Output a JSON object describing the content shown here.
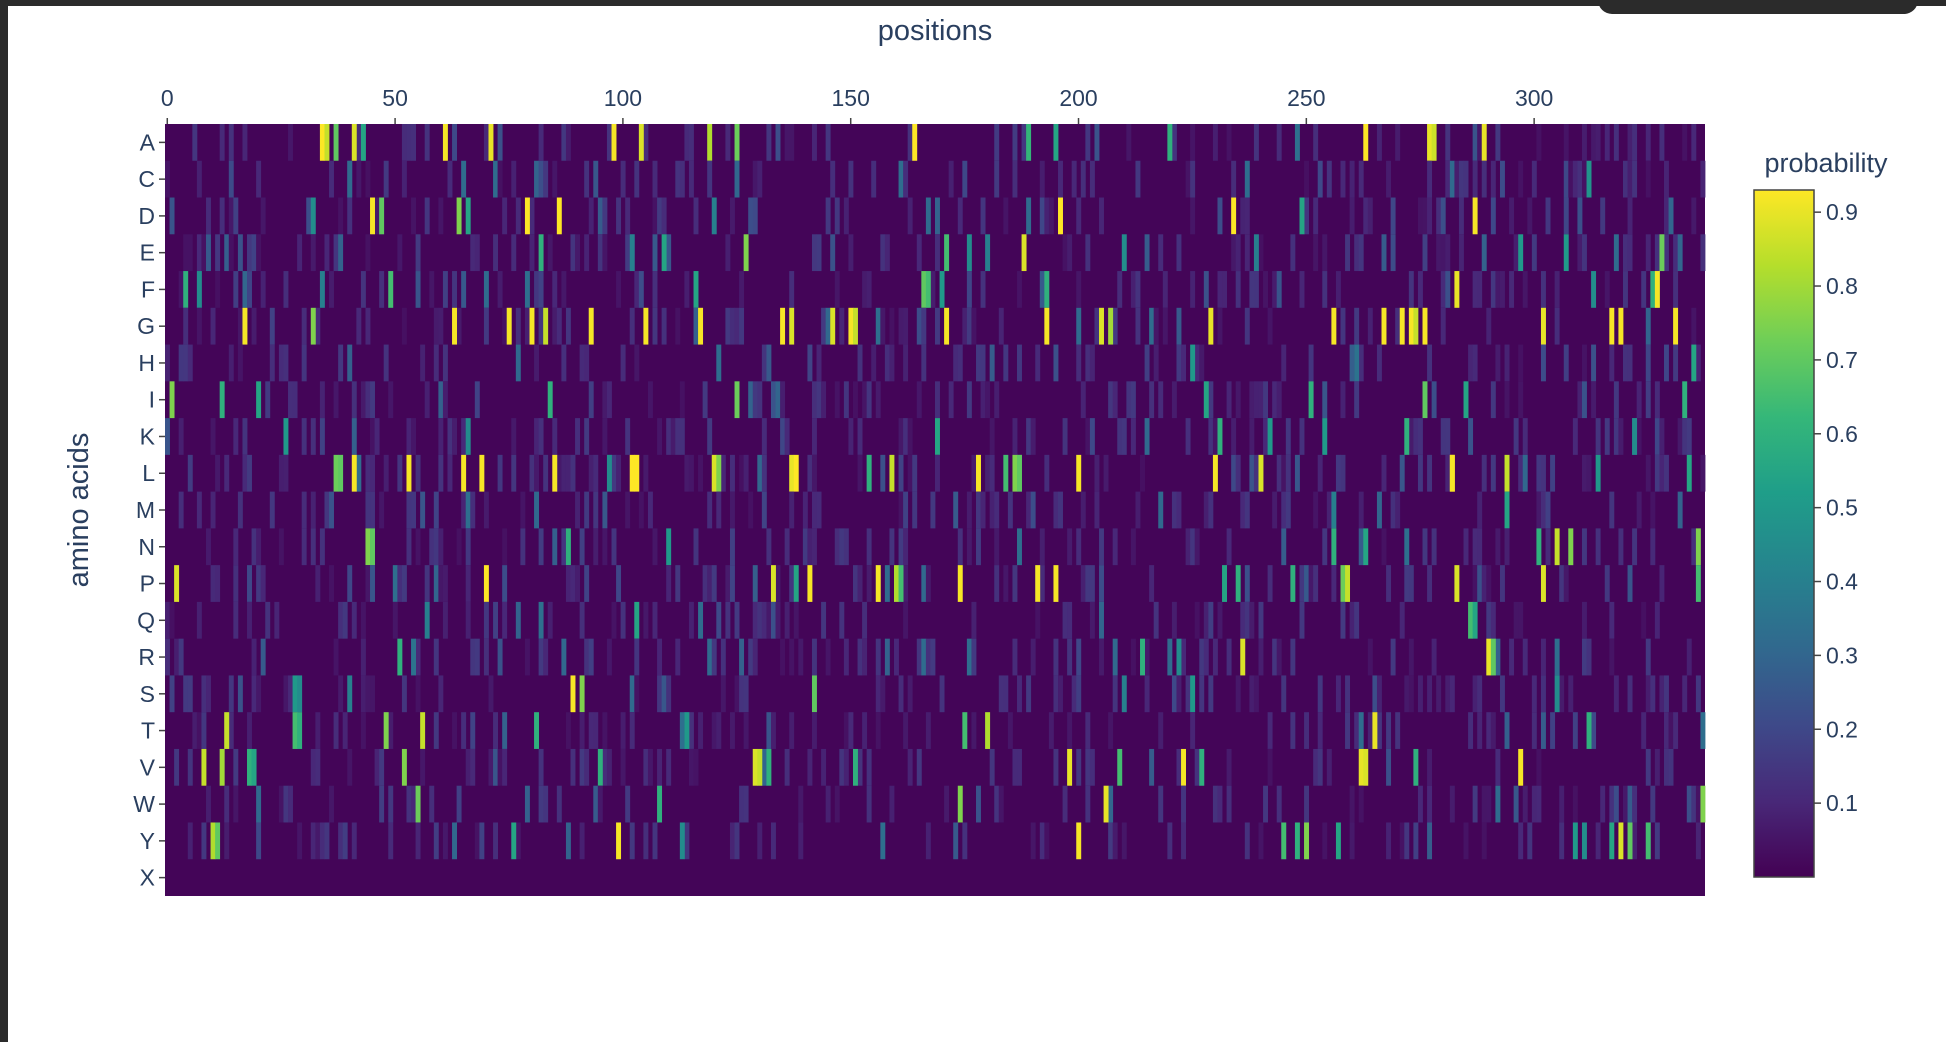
{
  "chart_data": {
    "type": "heatmap",
    "xlabel": "positions",
    "ylabel": "amino acids",
    "x_ticks": [
      0,
      50,
      100,
      150,
      200,
      250,
      300
    ],
    "x_range": [
      -0.5,
      337.5
    ],
    "num_positions": 338,
    "rows": [
      "A",
      "C",
      "D",
      "E",
      "F",
      "G",
      "H",
      "I",
      "K",
      "L",
      "M",
      "N",
      "P",
      "Q",
      "R",
      "S",
      "T",
      "V",
      "W",
      "Y",
      "X"
    ],
    "colorbar": {
      "title": "probability",
      "ticks": [
        0.1,
        0.2,
        0.3,
        0.4,
        0.5,
        0.6,
        0.7,
        0.8,
        0.9
      ],
      "range": [
        0.0,
        0.93
      ],
      "colorscale": "Viridis"
    },
    "peaks": {
      "A": [
        [
          34,
          0.93
        ],
        [
          35,
          0.85
        ],
        [
          37,
          0.7
        ],
        [
          41,
          0.88
        ],
        [
          43,
          0.55
        ],
        [
          61,
          0.92
        ],
        [
          71,
          0.9
        ],
        [
          98,
          0.92
        ],
        [
          104,
          0.88
        ],
        [
          119,
          0.82
        ],
        [
          125,
          0.72
        ],
        [
          164,
          0.93
        ],
        [
          189,
          0.62
        ],
        [
          195,
          0.55
        ],
        [
          220,
          0.6
        ],
        [
          263,
          0.93
        ],
        [
          277,
          0.9
        ],
        [
          278,
          0.86
        ],
        [
          289,
          0.9
        ]
      ],
      "C": [
        [
          40,
          0.32
        ],
        [
          94,
          0.25
        ],
        [
          175,
          0.2
        ],
        [
          312,
          0.48
        ]
      ],
      "D": [
        [
          45,
          0.92
        ],
        [
          47,
          0.7
        ],
        [
          64,
          0.75
        ],
        [
          66,
          0.55
        ],
        [
          79,
          0.93
        ],
        [
          86,
          0.93
        ],
        [
          196,
          0.93
        ],
        [
          234,
          0.93
        ],
        [
          249,
          0.55
        ],
        [
          287,
          0.92
        ],
        [
          32,
          0.45
        ],
        [
          120,
          0.4
        ]
      ],
      "E": [
        [
          82,
          0.6
        ],
        [
          102,
          0.4
        ],
        [
          109,
          0.55
        ],
        [
          127,
          0.75
        ],
        [
          171,
          0.65
        ],
        [
          176,
          0.45
        ],
        [
          180,
          0.4
        ],
        [
          188,
          0.88
        ],
        [
          210,
          0.45
        ],
        [
          239,
          0.4
        ],
        [
          297,
          0.5
        ],
        [
          307,
          0.5
        ],
        [
          328,
          0.72
        ]
      ],
      "F": [
        [
          4,
          0.6
        ],
        [
          7,
          0.45
        ],
        [
          34,
          0.4
        ],
        [
          49,
          0.65
        ],
        [
          116,
          0.55
        ],
        [
          166,
          0.7
        ],
        [
          167,
          0.65
        ],
        [
          170,
          0.5
        ],
        [
          193,
          0.6
        ],
        [
          283,
          0.9
        ],
        [
          313,
          0.45
        ],
        [
          326,
          0.6
        ],
        [
          327,
          0.92
        ]
      ],
      "G": [
        [
          17,
          0.92
        ],
        [
          32,
          0.75
        ],
        [
          63,
          0.92
        ],
        [
          75,
          0.92
        ],
        [
          80,
          0.92
        ],
        [
          83,
          0.85
        ],
        [
          93,
          0.92
        ],
        [
          105,
          0.92
        ],
        [
          117,
          0.92
        ],
        [
          135,
          0.92
        ],
        [
          137,
          0.88
        ],
        [
          146,
          0.88
        ],
        [
          150,
          0.92
        ],
        [
          151,
          0.85
        ],
        [
          171,
          0.92
        ],
        [
          193,
          0.92
        ],
        [
          205,
          0.88
        ],
        [
          207,
          0.8
        ],
        [
          229,
          0.9
        ],
        [
          256,
          0.92
        ],
        [
          267,
          0.92
        ],
        [
          271,
          0.92
        ],
        [
          273,
          0.92
        ],
        [
          274,
          0.85
        ],
        [
          276,
          0.92
        ],
        [
          302,
          0.9
        ],
        [
          317,
          0.92
        ],
        [
          319,
          0.92
        ],
        [
          331,
          0.92
        ]
      ],
      "H": [
        [
          225,
          0.5
        ],
        [
          261,
          0.35
        ],
        [
          335,
          0.55
        ]
      ],
      "I": [
        [
          1,
          0.75
        ],
        [
          12,
          0.6
        ],
        [
          20,
          0.55
        ],
        [
          84,
          0.6
        ],
        [
          125,
          0.72
        ],
        [
          228,
          0.55
        ],
        [
          251,
          0.6
        ],
        [
          276,
          0.7
        ],
        [
          285,
          0.55
        ],
        [
          333,
          0.6
        ]
      ],
      "K": [
        [
          26,
          0.5
        ],
        [
          66,
          0.45
        ],
        [
          169,
          0.55
        ],
        [
          231,
          0.6
        ],
        [
          242,
          0.5
        ],
        [
          254,
          0.5
        ],
        [
          272,
          0.6
        ],
        [
          322,
          0.45
        ]
      ],
      "L": [
        [
          37,
          0.72
        ],
        [
          38,
          0.7
        ],
        [
          41,
          0.92
        ],
        [
          53,
          0.92
        ],
        [
          65,
          0.92
        ],
        [
          69,
          0.92
        ],
        [
          85,
          0.92
        ],
        [
          97,
          0.45
        ],
        [
          102,
          0.93
        ],
        [
          103,
          0.93
        ],
        [
          120,
          0.88
        ],
        [
          121,
          0.75
        ],
        [
          137,
          0.9
        ],
        [
          138,
          0.93
        ],
        [
          154,
          0.6
        ],
        [
          159,
          0.85
        ],
        [
          178,
          0.92
        ],
        [
          184,
          0.65
        ],
        [
          186,
          0.75
        ],
        [
          187,
          0.7
        ],
        [
          200,
          0.92
        ],
        [
          230,
          0.92
        ],
        [
          240,
          0.88
        ],
        [
          282,
          0.92
        ],
        [
          282,
          0.92
        ],
        [
          294,
          0.85
        ],
        [
          314,
          0.5
        ],
        [
          334,
          0.55
        ]
      ],
      "M": [
        [
          256,
          0.4
        ],
        [
          294,
          0.55
        ]
      ],
      "N": [
        [
          44,
          0.75
        ],
        [
          45,
          0.7
        ],
        [
          88,
          0.6
        ],
        [
          110,
          0.5
        ],
        [
          256,
          0.6
        ],
        [
          263,
          0.55
        ],
        [
          301,
          0.6
        ],
        [
          305,
          0.85
        ],
        [
          308,
          0.75
        ],
        [
          336,
          0.75
        ]
      ],
      "P": [
        [
          2,
          0.88
        ],
        [
          70,
          0.93
        ],
        [
          133,
          0.88
        ],
        [
          138,
          0.55
        ],
        [
          141,
          0.92
        ],
        [
          156,
          0.92
        ],
        [
          160,
          0.82
        ],
        [
          161,
          0.65
        ],
        [
          174,
          0.92
        ],
        [
          191,
          0.92
        ],
        [
          195,
          0.92
        ],
        [
          232,
          0.55
        ],
        [
          235,
          0.6
        ],
        [
          247,
          0.6
        ],
        [
          258,
          0.72
        ],
        [
          259,
          0.85
        ],
        [
          283,
          0.88
        ],
        [
          302,
          0.88
        ],
        [
          336,
          0.65
        ]
      ],
      "Q": [
        [
          103,
          0.55
        ],
        [
          286,
          0.65
        ],
        [
          287,
          0.55
        ],
        [
          57,
          0.4
        ]
      ],
      "R": [
        [
          51,
          0.6
        ],
        [
          214,
          0.6
        ],
        [
          222,
          0.45
        ],
        [
          236,
          0.88
        ],
        [
          290,
          0.9
        ],
        [
          291,
          0.7
        ],
        [
          54,
          0.35
        ]
      ],
      "S": [
        [
          28,
          0.5
        ],
        [
          29,
          0.45
        ],
        [
          40,
          0.4
        ],
        [
          89,
          0.92
        ],
        [
          91,
          0.75
        ],
        [
          142,
          0.7
        ],
        [
          210,
          0.4
        ],
        [
          225,
          0.5
        ],
        [
          305,
          0.45
        ]
      ],
      "T": [
        [
          13,
          0.85
        ],
        [
          28,
          0.65
        ],
        [
          48,
          0.75
        ],
        [
          56,
          0.85
        ],
        [
          81,
          0.6
        ],
        [
          114,
          0.5
        ],
        [
          175,
          0.65
        ],
        [
          180,
          0.82
        ],
        [
          265,
          0.9
        ],
        [
          312,
          0.6
        ],
        [
          29,
          0.6
        ]
      ],
      "V": [
        [
          8,
          0.85
        ],
        [
          12,
          0.8
        ],
        [
          18,
          0.6
        ],
        [
          19,
          0.55
        ],
        [
          52,
          0.75
        ],
        [
          95,
          0.6
        ],
        [
          129,
          0.88
        ],
        [
          130,
          0.85
        ],
        [
          132,
          0.6
        ],
        [
          151,
          0.6
        ],
        [
          198,
          0.9
        ],
        [
          209,
          0.65
        ],
        [
          223,
          0.92
        ],
        [
          227,
          0.6
        ],
        [
          262,
          0.9
        ],
        [
          263,
          0.88
        ],
        [
          274,
          0.6
        ],
        [
          297,
          0.92
        ]
      ],
      "W": [
        [
          55,
          0.72
        ],
        [
          108,
          0.6
        ],
        [
          174,
          0.75
        ],
        [
          206,
          0.9
        ],
        [
          337,
          0.75
        ]
      ],
      "Y": [
        [
          10,
          0.82
        ],
        [
          11,
          0.7
        ],
        [
          76,
          0.55
        ],
        [
          99,
          0.92
        ],
        [
          113,
          0.45
        ],
        [
          200,
          0.92
        ],
        [
          245,
          0.65
        ],
        [
          248,
          0.6
        ],
        [
          250,
          0.75
        ],
        [
          257,
          0.55
        ],
        [
          309,
          0.5
        ],
        [
          311,
          0.45
        ],
        [
          319,
          0.88
        ],
        [
          321,
          0.7
        ],
        [
          325,
          0.65
        ],
        [
          317,
          0.55
        ]
      ],
      "X": []
    }
  }
}
